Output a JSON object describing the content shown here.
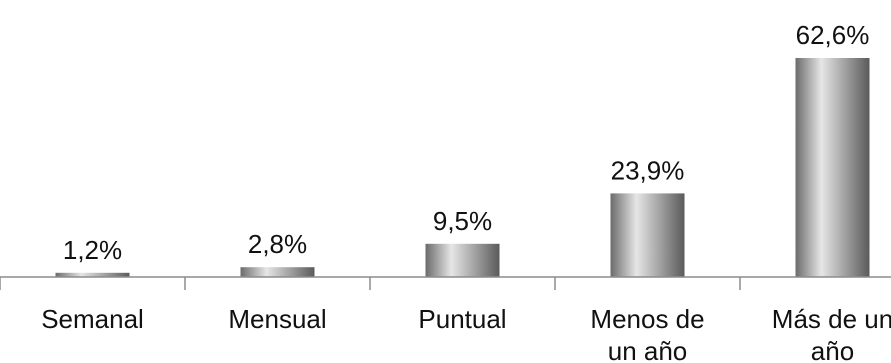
{
  "chart_data": {
    "type": "bar",
    "categories": [
      "Semanal",
      "Mensual",
      "Puntual",
      "Menos de un año",
      "Más de un año"
    ],
    "category_lines": [
      [
        "Semanal"
      ],
      [
        "Mensual"
      ],
      [
        "Puntual"
      ],
      [
        "Menos de",
        "un año"
      ],
      [
        "Más de un",
        "año"
      ]
    ],
    "values": [
      1.2,
      2.8,
      9.5,
      23.9,
      62.6
    ],
    "value_labels": [
      "1,2%",
      "2,8%",
      "9,5%",
      "23,9%",
      "62,6%"
    ],
    "title": "",
    "xlabel": "",
    "ylabel": "",
    "ylim": [
      0,
      62.6
    ],
    "grid": false,
    "legend": "none",
    "colors": {
      "bar_edge": "#6b6b6b",
      "bar_mid": "#e6e6e6",
      "bar_dark": "#5a5a5a",
      "axis": "#8c8c8c"
    }
  }
}
